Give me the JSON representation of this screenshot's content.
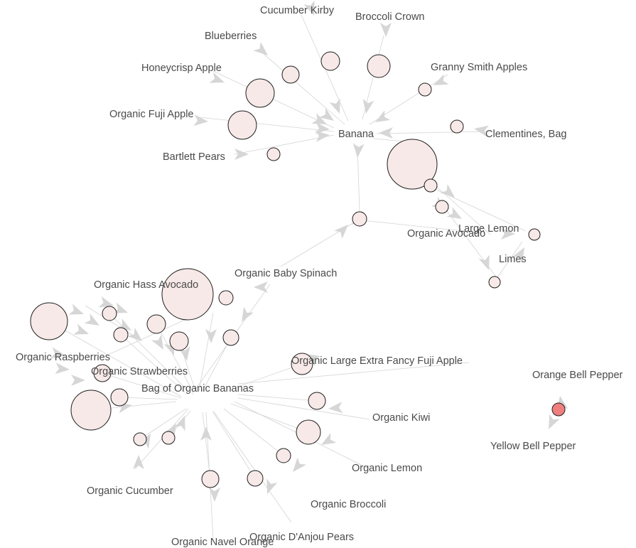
{
  "colors": {
    "node_fill": "#f7e9e7",
    "node_highlight": "#ef7f7f",
    "edge": "#d4d4d4",
    "arrow": "#d6d6d6",
    "node_stroke": "#1e1e1e",
    "label": "#4a4a4a"
  },
  "nodes": [
    {
      "id": "banana",
      "label": "Banana"
    },
    {
      "id": "cucumber-kirby",
      "label": "Cucumber Kirby"
    },
    {
      "id": "broccoli-crown",
      "label": "Broccoli Crown"
    },
    {
      "id": "blueberries",
      "label": "Blueberries"
    },
    {
      "id": "honeycrisp-apple",
      "label": "Honeycrisp Apple"
    },
    {
      "id": "granny-smith-apples",
      "label": "Granny Smith Apples"
    },
    {
      "id": "organic-fuji-apple",
      "label": "Organic Fuji Apple"
    },
    {
      "id": "clementines-bag",
      "label": "Clementines, Bag"
    },
    {
      "id": "bartlett-pears",
      "label": "Bartlett Pears"
    },
    {
      "id": "large-lemon",
      "label": "Large Lemon"
    },
    {
      "id": "organic-avocado",
      "label": "Organic Avocado"
    },
    {
      "id": "limes",
      "label": "Limes"
    },
    {
      "id": "organic-baby-spinach",
      "label": "Organic Baby Spinach"
    },
    {
      "id": "organic-hass-avocado",
      "label": "Organic Hass Avocado"
    },
    {
      "id": "organic-raspberries",
      "label": "Organic Raspberries"
    },
    {
      "id": "organic-strawberries",
      "label": "Organic Strawberries"
    },
    {
      "id": "bag-of-organic-bananas",
      "label": "Bag of Organic Bananas"
    },
    {
      "id": "organic-large-extra-fancy-fuji-apple",
      "label": "Organic Large Extra Fancy Fuji Apple"
    },
    {
      "id": "organic-kiwi",
      "label": "Organic Kiwi"
    },
    {
      "id": "organic-lemon",
      "label": "Organic Lemon"
    },
    {
      "id": "organic-cucumber",
      "label": "Organic Cucumber"
    },
    {
      "id": "organic-broccoli",
      "label": "Organic Broccoli"
    },
    {
      "id": "organic-navel-orange",
      "label": "Organic Navel Orange"
    },
    {
      "id": "organic-danjou-pears",
      "label": "Organic D'Anjou Pears"
    },
    {
      "id": "orange-bell-pepper",
      "label": "Orange Bell Pepper"
    },
    {
      "id": "yellow-bell-pepper",
      "label": "Yellow Bell Pepper"
    }
  ]
}
